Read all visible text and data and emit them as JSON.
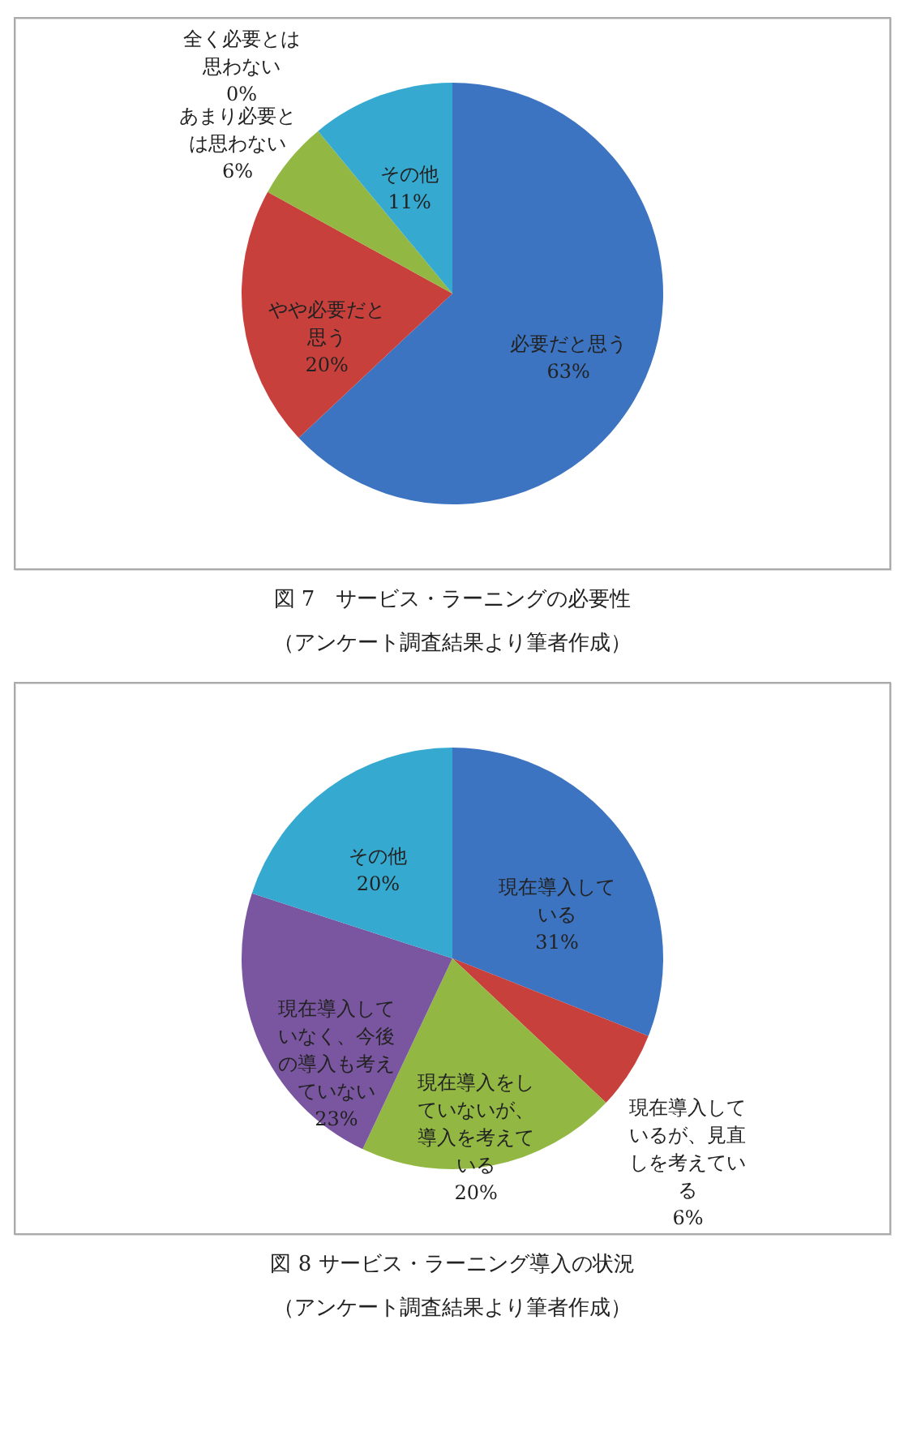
{
  "chart_data": [
    {
      "type": "pie",
      "title": "図 7　サービス・ラーニングの必要性",
      "subtitle": "（アンケート調査結果より筆者作成）",
      "categories": [
        "必要だと思う",
        "やや必要だと思う",
        "あまり必要とは思わない",
        "全く必要とは思わない",
        "その他"
      ],
      "values": [
        63,
        20,
        6,
        0,
        11
      ],
      "value_labels": [
        "63%",
        "20%",
        "6%",
        "0%",
        "11%"
      ],
      "colors": [
        "#3c74c2",
        "#c8403c",
        "#92b843",
        "#7a56a0",
        "#35a9cf"
      ],
      "legend": false
    },
    {
      "type": "pie",
      "title": "図 8 サービス・ラーニング導入の状況",
      "subtitle": "（アンケート調査結果より筆者作成）",
      "categories": [
        "現在導入している",
        "現在導入しているが、見直しを考えている",
        "現在導入をしていないが、導入を考えている",
        "現在導入していなく、今後の導入も考えていない",
        "その他"
      ],
      "values": [
        31,
        6,
        20,
        23,
        20
      ],
      "value_labels": [
        "31%",
        "6%",
        "20%",
        "23%",
        "20%"
      ],
      "colors": [
        "#3c74c2",
        "#c8403c",
        "#92b843",
        "#7a56a0",
        "#35a9cf"
      ],
      "legend": false
    }
  ]
}
